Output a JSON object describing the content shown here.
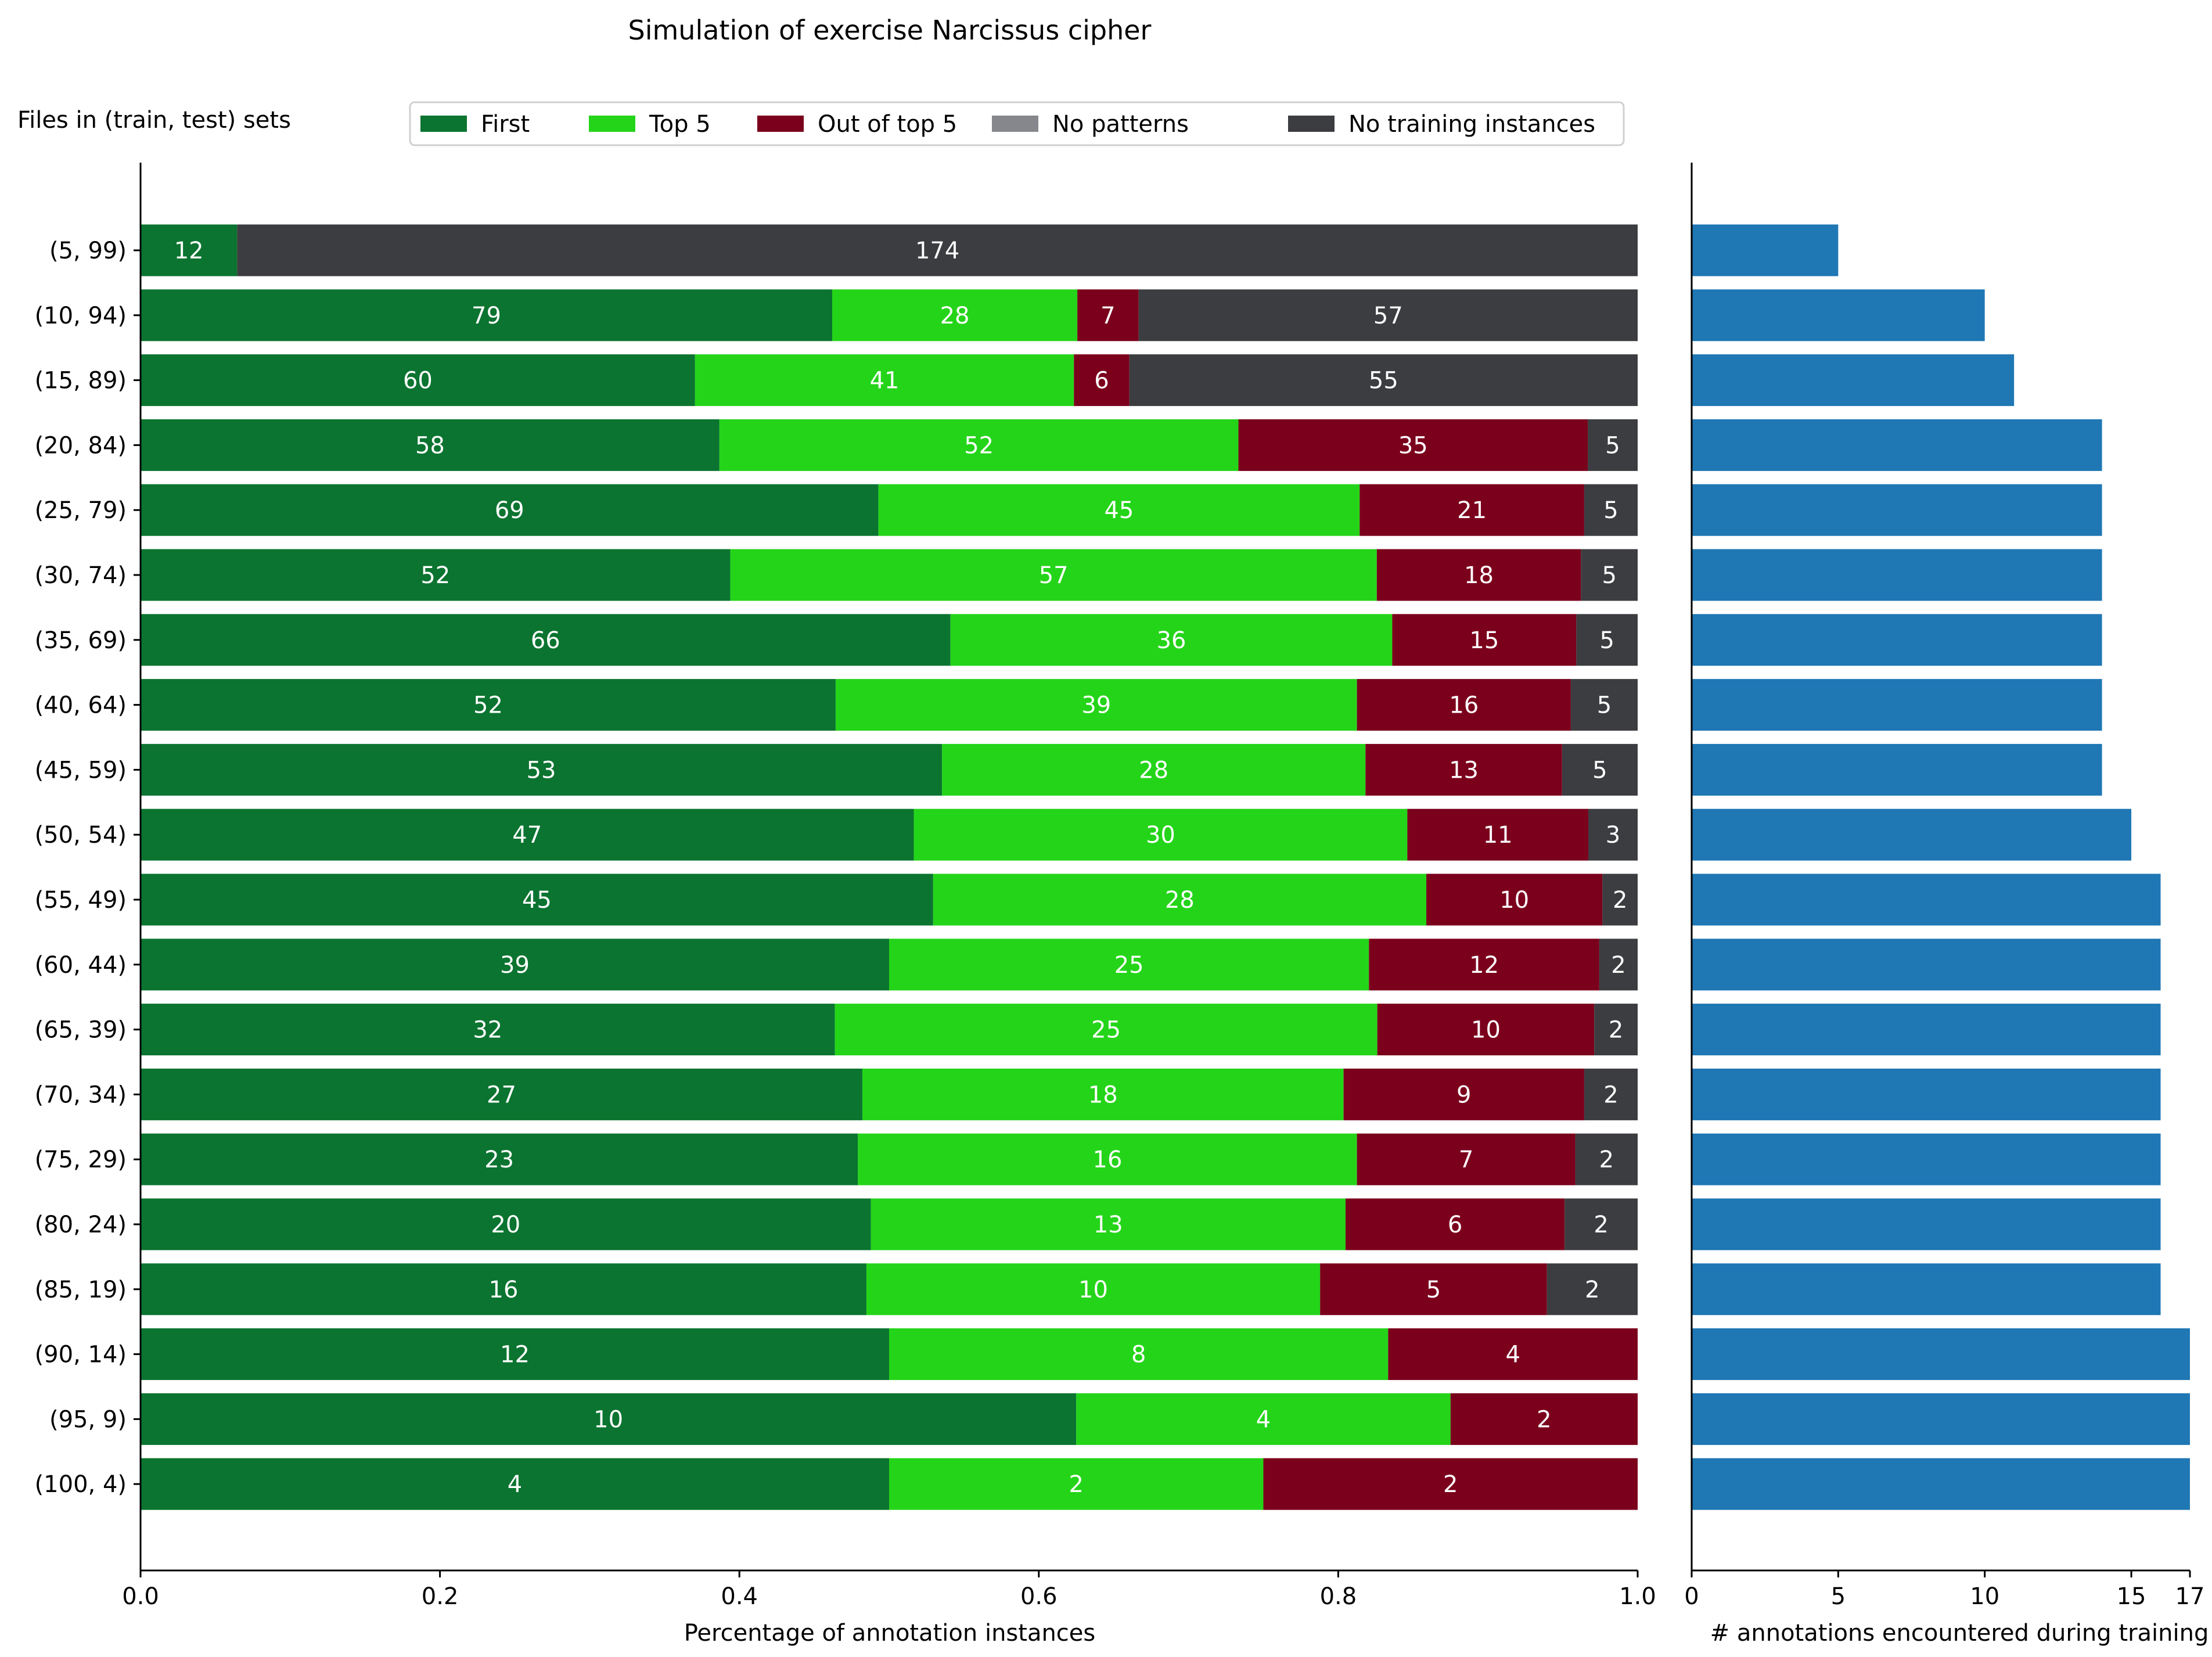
{
  "chart_data": [
    {
      "type": "bar",
      "orientation": "horizontal",
      "stacked": true,
      "normalized": true,
      "title": "Simulation of exercise Narcissus cipher",
      "row_header": "Files in (train, test) sets",
      "xlabel": "Percentage of annotation instances",
      "xlim": [
        0,
        1
      ],
      "xticks": [
        "0.0",
        "0.2",
        "0.4",
        "0.6",
        "0.8",
        "1.0"
      ],
      "legend_position": "top",
      "categories": [
        "(5, 99)",
        "(10, 94)",
        "(15, 89)",
        "(20, 84)",
        "(25, 79)",
        "(30, 74)",
        "(35, 69)",
        "(40, 64)",
        "(45, 59)",
        "(50, 54)",
        "(55, 49)",
        "(60, 44)",
        "(65, 39)",
        "(70, 34)",
        "(75, 29)",
        "(80, 24)",
        "(85, 19)",
        "(90, 14)",
        "(95, 9)",
        "(100, 4)"
      ],
      "series": [
        {
          "name": "First",
          "color": "#0b7430",
          "values": [
            12,
            79,
            60,
            58,
            69,
            52,
            66,
            52,
            53,
            47,
            45,
            39,
            32,
            27,
            23,
            20,
            16,
            12,
            10,
            4
          ]
        },
        {
          "name": "Top 5",
          "color": "#24d419",
          "values": [
            0,
            28,
            41,
            52,
            45,
            57,
            36,
            39,
            28,
            30,
            28,
            25,
            25,
            18,
            16,
            13,
            10,
            8,
            4,
            2
          ]
        },
        {
          "name": "Out of top 5",
          "color": "#7b001c",
          "values": [
            0,
            7,
            6,
            35,
            21,
            18,
            15,
            16,
            13,
            11,
            10,
            12,
            10,
            9,
            7,
            6,
            5,
            4,
            2,
            2
          ]
        },
        {
          "name": "No patterns",
          "color": "#85878c",
          "values": [
            0,
            0,
            0,
            0,
            0,
            0,
            0,
            0,
            0,
            0,
            0,
            0,
            0,
            0,
            0,
            0,
            0,
            0,
            0,
            0
          ]
        },
        {
          "name": "No training instances",
          "color": "#3c3d40",
          "values": [
            174,
            57,
            55,
            5,
            5,
            5,
            5,
            5,
            5,
            3,
            2,
            2,
            2,
            2,
            2,
            2,
            2,
            0,
            0,
            0
          ]
        }
      ]
    },
    {
      "type": "bar",
      "orientation": "horizontal",
      "xlabel": "# annotations encountered during training",
      "xlim": [
        0,
        17
      ],
      "xticks": [
        "0",
        "5",
        "10",
        "15",
        "17"
      ],
      "color": "#1f77b4",
      "categories": [
        "(5, 99)",
        "(10, 94)",
        "(15, 89)",
        "(20, 84)",
        "(25, 79)",
        "(30, 74)",
        "(35, 69)",
        "(40, 64)",
        "(45, 59)",
        "(50, 54)",
        "(55, 49)",
        "(60, 44)",
        "(65, 39)",
        "(70, 34)",
        "(75, 29)",
        "(80, 24)",
        "(85, 19)",
        "(90, 14)",
        "(95, 9)",
        "(100, 4)"
      ],
      "values": [
        5,
        10,
        11,
        14,
        14,
        14,
        14,
        14,
        14,
        15,
        16,
        16,
        16,
        16,
        16,
        16,
        16,
        17,
        17,
        17
      ]
    }
  ]
}
